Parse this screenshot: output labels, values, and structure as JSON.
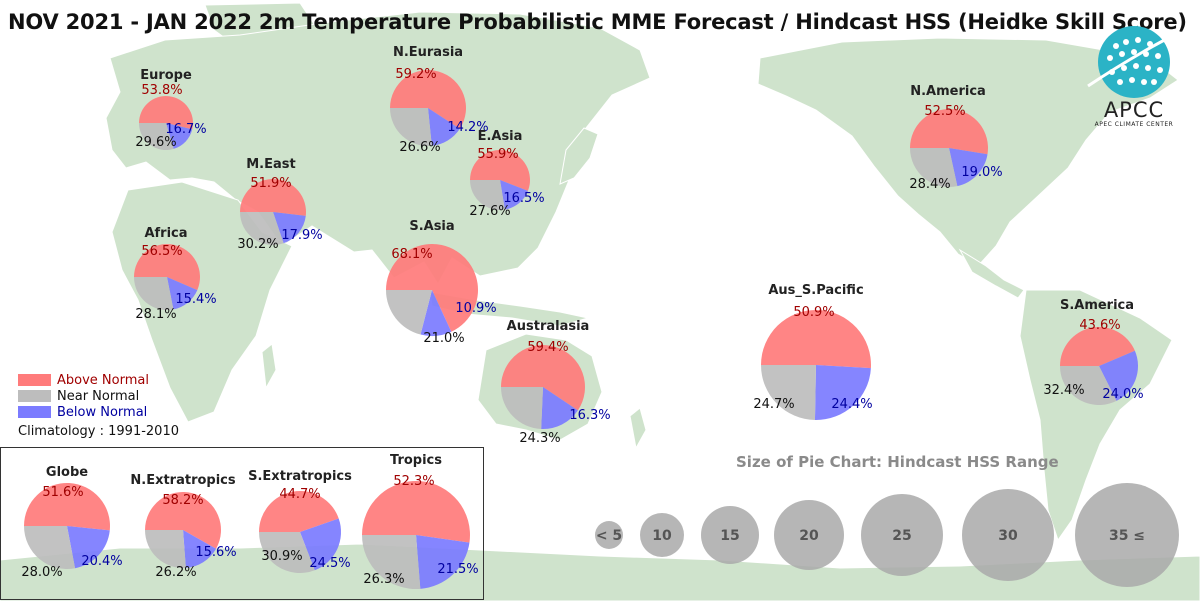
{
  "title": "NOV 2021 - JAN 2022 2m Temperature Probabilistic MME Forecast / Hindcast HSS (Heidke Skill Score)",
  "logo": {
    "name": "APCC",
    "subtitle": "APEC CLIMATE CENTER"
  },
  "legend": {
    "above": {
      "label": "Above Normal",
      "color": "#ff7b7b"
    },
    "near": {
      "label": "Near Normal",
      "color": "#bdbdbd"
    },
    "below": {
      "label": "Below Normal",
      "color": "#7b7bff"
    },
    "climatology": "Climatology : 1991-2010"
  },
  "size_legend": {
    "title": "Size of Pie Chart: Hindcast HSS Range",
    "labels": [
      "< 5",
      "10",
      "15",
      "20",
      "25",
      "30",
      "35 ≤"
    ]
  },
  "chart_data": {
    "type": "pie",
    "categories": [
      "Above Normal",
      "Near Normal",
      "Below Normal"
    ],
    "colors": [
      "#ff7b7b",
      "#bdbdbd",
      "#7b7bff"
    ],
    "pies": [
      {
        "name": "Europe",
        "values": [
          53.8,
          29.6,
          16.7
        ],
        "labels": [
          "53.8%",
          "29.6%",
          "16.7%"
        ]
      },
      {
        "name": "N.Eurasia",
        "values": [
          59.2,
          26.6,
          14.2
        ],
        "labels": [
          "59.2%",
          "26.6%",
          "14.2%"
        ]
      },
      {
        "name": "E.Asia",
        "values": [
          55.9,
          27.6,
          16.5
        ],
        "labels": [
          "55.9%",
          "27.6%",
          "16.5%"
        ]
      },
      {
        "name": "M.East",
        "values": [
          51.9,
          30.2,
          17.9
        ],
        "labels": [
          "51.9%",
          "30.2%",
          "17.9%"
        ]
      },
      {
        "name": "Africa",
        "values": [
          56.5,
          28.1,
          15.4
        ],
        "labels": [
          "56.5%",
          "28.1%",
          "15.4%"
        ]
      },
      {
        "name": "S.Asia",
        "values": [
          68.1,
          21.0,
          10.9
        ],
        "labels": [
          "68.1%",
          "21.0%",
          "10.9%"
        ]
      },
      {
        "name": "Australasia",
        "values": [
          59.4,
          24.3,
          16.3
        ],
        "labels": [
          "59.4%",
          "24.3%",
          "16.3%"
        ]
      },
      {
        "name": "Aus_S.Pacific",
        "values": [
          50.9,
          24.7,
          24.4
        ],
        "labels": [
          "50.9%",
          "24.7%",
          "24.4%"
        ]
      },
      {
        "name": "N.America",
        "values": [
          52.5,
          28.4,
          19.0
        ],
        "labels": [
          "52.5%",
          "28.4%",
          "19.0%"
        ]
      },
      {
        "name": "S.America",
        "values": [
          43.6,
          32.4,
          24.0
        ],
        "labels": [
          "43.6%",
          "32.4%",
          "24.0%"
        ]
      },
      {
        "name": "Globe",
        "values": [
          51.6,
          28.0,
          20.4
        ],
        "labels": [
          "51.6%",
          "28.0%",
          "20.4%"
        ]
      },
      {
        "name": "N.Extratropics",
        "values": [
          58.2,
          26.2,
          15.6
        ],
        "labels": [
          "58.2%",
          "26.2%",
          "15.6%"
        ]
      },
      {
        "name": "S.Extratropics",
        "values": [
          44.7,
          30.9,
          24.5
        ],
        "labels": [
          "44.7%",
          "30.9%",
          "24.5%"
        ]
      },
      {
        "name": "Tropics",
        "values": [
          52.3,
          26.3,
          21.5
        ],
        "labels": [
          "52.3%",
          "26.3%",
          "21.5%"
        ]
      }
    ]
  }
}
